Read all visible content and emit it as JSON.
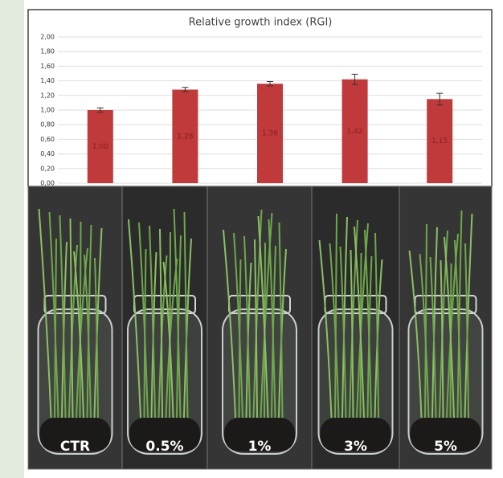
{
  "chart_data": {
    "type": "bar",
    "title": "Relative growth index (RGI)",
    "categories": [
      "CTR",
      "0.5%",
      "1%",
      "3%",
      "5%"
    ],
    "values": [
      1.0,
      1.28,
      1.36,
      1.42,
      1.15
    ],
    "value_labels": [
      "1,00",
      "1,28",
      "1,36",
      "1,42",
      "1,15"
    ],
    "errors": [
      0.03,
      0.03,
      0.03,
      0.07,
      0.08
    ],
    "color": "#c0393b",
    "ylim": [
      0,
      2
    ],
    "yticks": [
      {
        "value": 0,
        "label": "0,00"
      },
      {
        "value": 0.2,
        "label": "0,20"
      },
      {
        "value": 0.4,
        "label": "0,40"
      },
      {
        "value": 0.6,
        "label": "0,60"
      },
      {
        "value": 0.8,
        "label": "0,80"
      },
      {
        "value": 1,
        "label": "1,00"
      },
      {
        "value": 1.2,
        "label": "1,20"
      },
      {
        "value": 1.4,
        "label": "1,40"
      },
      {
        "value": 1.6,
        "label": "1,60"
      },
      {
        "value": 1.8,
        "label": "1,80"
      },
      {
        "value": 2,
        "label": "2,00"
      }
    ],
    "grid": true
  }
}
